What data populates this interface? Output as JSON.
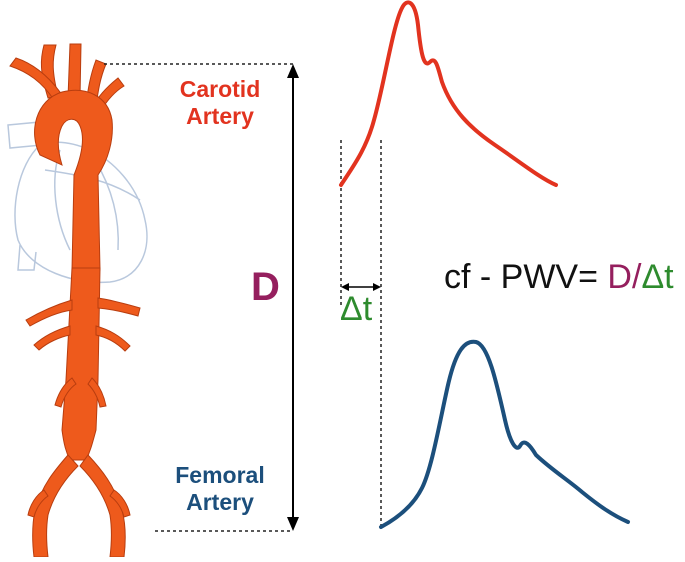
{
  "labels": {
    "carotid_line1": "Carotid",
    "carotid_line2": "Artery",
    "femoral_line1": "Femoral",
    "femoral_line2": "Artery",
    "distance": "D",
    "time_delay": "Δt"
  },
  "formula": {
    "left": "cf - PWV= ",
    "distance": "D",
    "slash": "/",
    "time": "Δt"
  },
  "colors": {
    "carotid": "#e2331f",
    "femoral": "#1c4f7c",
    "distance": "#951f5e",
    "time": "#2e8b2e",
    "aorta": "#ee5a1c",
    "heart_outline": "#b9c8dd"
  }
}
